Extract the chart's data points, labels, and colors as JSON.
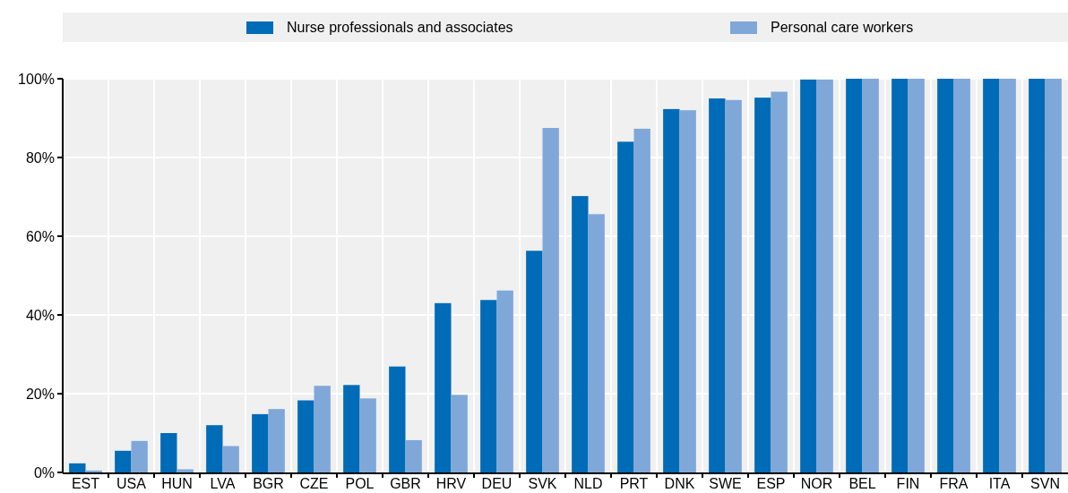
{
  "chart_data": {
    "type": "bar",
    "categories": [
      "EST",
      "USA",
      "HUN",
      "LVA",
      "BGR",
      "CZE",
      "POL",
      "GBR",
      "HRV",
      "DEU",
      "SVK",
      "NLD",
      "PRT",
      "DNK",
      "SWE",
      "ESP",
      "NOR",
      "BEL",
      "FIN",
      "FRA",
      "ITA",
      "SVN"
    ],
    "series": [
      {
        "name": "Nurse professionals and associates",
        "color": "#006bb6",
        "values": [
          2.3,
          5.5,
          10,
          12,
          14.8,
          18.3,
          22.2,
          26.9,
          43,
          43.8,
          56.3,
          70.2,
          84,
          92.3,
          95,
          95.2,
          99.8,
          100,
          100,
          100,
          100,
          100
        ]
      },
      {
        "name": "Personal care workers",
        "color": "#7fa8d9",
        "values": [
          0.5,
          8,
          0.8,
          6.7,
          16.1,
          22,
          18.8,
          8.2,
          19.7,
          46.2,
          87.5,
          65.6,
          87.3,
          92,
          94.6,
          96.7,
          99.8,
          100,
          100,
          100,
          100,
          100
        ]
      }
    ],
    "ylim": [
      0,
      100
    ],
    "yticks": [
      {
        "value": 0,
        "label": "0%"
      },
      {
        "value": 20,
        "label": "20%"
      },
      {
        "value": 40,
        "label": "40%"
      },
      {
        "value": 60,
        "label": "60%"
      },
      {
        "value": 80,
        "label": "80%"
      },
      {
        "value": 100,
        "label": "100%"
      }
    ],
    "grid": true,
    "legend": "top"
  }
}
